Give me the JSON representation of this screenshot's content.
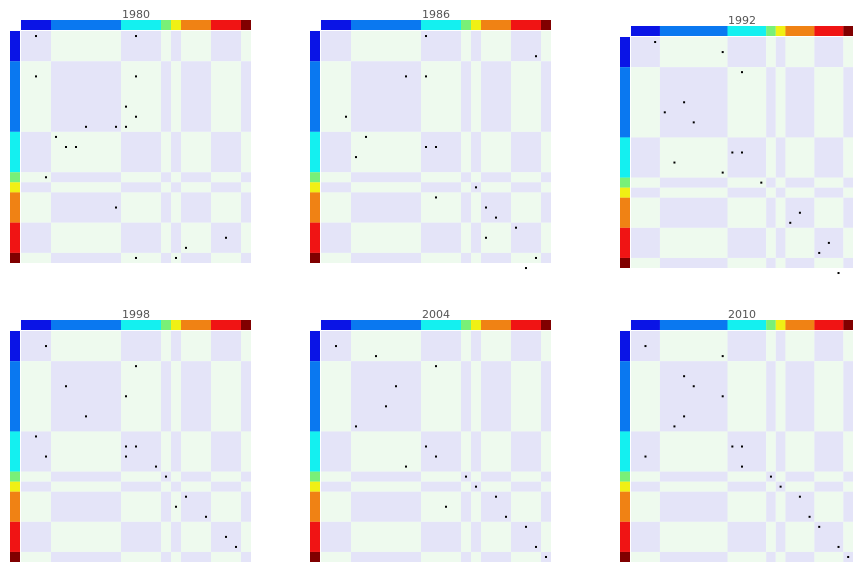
{
  "chart_data": {
    "type": "heatmap",
    "block_sizes": [
      3,
      7,
      4,
      1,
      1,
      3,
      3,
      1
    ],
    "group_colors": [
      "#0a14e6",
      "#0a78f0",
      "#14f0f0",
      "#78f078",
      "#f0f014",
      "#f08214",
      "#f01414",
      "#800000"
    ],
    "background_colors": {
      "diagonal": "#e4e4f8",
      "off_diagonal": "#eefaee"
    },
    "mark_color": "#000000",
    "panels": [
      {
        "title": "1980",
        "points": [
          [
            0,
            1
          ],
          [
            0,
            11
          ],
          [
            4,
            1
          ],
          [
            4,
            11
          ],
          [
            10,
            3
          ],
          [
            9,
            9
          ],
          [
            9,
            6
          ],
          [
            7,
            10
          ],
          [
            8,
            11
          ],
          [
            9,
            10
          ],
          [
            11,
            4
          ],
          [
            11,
            5
          ],
          [
            14,
            2
          ],
          [
            17,
            9
          ],
          [
            20,
            20
          ],
          [
            21,
            16
          ],
          [
            22,
            11
          ],
          [
            22,
            15
          ]
        ]
      },
      {
        "title": "1986",
        "points": [
          [
            0,
            10
          ],
          [
            4,
            10
          ],
          [
            2,
            21
          ],
          [
            4,
            8
          ],
          [
            10,
            4
          ],
          [
            8,
            2
          ],
          [
            11,
            10
          ],
          [
            11,
            11
          ],
          [
            12,
            3
          ],
          [
            15,
            15
          ],
          [
            16,
            11
          ],
          [
            17,
            16
          ],
          [
            18,
            17
          ],
          [
            19,
            19
          ],
          [
            20,
            16
          ],
          [
            22,
            21
          ],
          [
            23,
            20
          ]
        ]
      },
      {
        "title": "1992",
        "points": [
          [
            0,
            2
          ],
          [
            1,
            9
          ],
          [
            3,
            11
          ],
          [
            6,
            5
          ],
          [
            7,
            3
          ],
          [
            8,
            6
          ],
          [
            11,
            10
          ],
          [
            11,
            11
          ],
          [
            12,
            4
          ],
          [
            13,
            9
          ],
          [
            14,
            13
          ],
          [
            17,
            17
          ],
          [
            18,
            16
          ],
          [
            20,
            20
          ],
          [
            21,
            19
          ],
          [
            23,
            21
          ]
        ]
      },
      {
        "title": "1998",
        "points": [
          [
            1,
            2
          ],
          [
            3,
            11
          ],
          [
            5,
            4
          ],
          [
            6,
            10
          ],
          [
            8,
            6
          ],
          [
            10,
            1
          ],
          [
            11,
            10
          ],
          [
            11,
            11
          ],
          [
            12,
            2
          ],
          [
            12,
            10
          ],
          [
            13,
            13
          ],
          [
            14,
            14
          ],
          [
            16,
            16
          ],
          [
            17,
            15
          ],
          [
            18,
            18
          ],
          [
            20,
            20
          ],
          [
            21,
            21
          ],
          [
            23,
            22
          ]
        ]
      },
      {
        "title": "2004",
        "points": [
          [
            1,
            1
          ],
          [
            2,
            5
          ],
          [
            3,
            11
          ],
          [
            5,
            7
          ],
          [
            7,
            6
          ],
          [
            9,
            3
          ],
          [
            11,
            10
          ],
          [
            12,
            11
          ],
          [
            13,
            8
          ],
          [
            14,
            14
          ],
          [
            15,
            15
          ],
          [
            16,
            17
          ],
          [
            17,
            12
          ],
          [
            18,
            18
          ],
          [
            19,
            20
          ],
          [
            21,
            21
          ],
          [
            22,
            22
          ]
        ]
      },
      {
        "title": "2010",
        "points": [
          [
            1,
            1
          ],
          [
            2,
            9
          ],
          [
            4,
            5
          ],
          [
            5,
            6
          ],
          [
            6,
            9
          ],
          [
            8,
            5
          ],
          [
            9,
            4
          ],
          [
            11,
            10
          ],
          [
            11,
            11
          ],
          [
            12,
            1
          ],
          [
            13,
            11
          ],
          [
            14,
            14
          ],
          [
            15,
            15
          ],
          [
            16,
            17
          ],
          [
            18,
            18
          ],
          [
            19,
            19
          ],
          [
            21,
            21
          ],
          [
            22,
            22
          ],
          [
            23,
            23
          ]
        ]
      }
    ]
  }
}
